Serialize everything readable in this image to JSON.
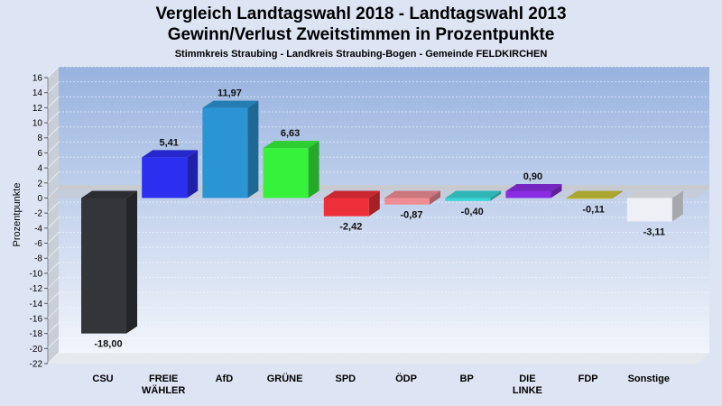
{
  "title": "Vergleich Landtagswahl 2018 - Landtagswahl 2013",
  "subtitle": "Gewinn/Verlust Zweitstimmen in Prozentpunkte",
  "subsubtitle": "Stimmkreis Straubing - Landkreis Straubing-Bogen - Gemeinde FELDKIRCHEN",
  "chart_data": {
    "type": "bar",
    "categories": [
      "CSU",
      "FREIE WÄHLER",
      "AfD",
      "GRÜNE",
      "SPD",
      "ÖDP",
      "BP",
      "DIE LINKE",
      "FDP",
      "Sonstige"
    ],
    "category_lines": [
      [
        "CSU"
      ],
      [
        "FREIE",
        "WÄHLER"
      ],
      [
        "AfD"
      ],
      [
        "GRÜNE"
      ],
      [
        "SPD"
      ],
      [
        "ÖDP"
      ],
      [
        "BP"
      ],
      [
        "DIE",
        "LINKE"
      ],
      [
        "FDP"
      ],
      [
        "Sonstige"
      ]
    ],
    "values": [
      -18.0,
      5.41,
      11.97,
      6.63,
      -2.42,
      -0.87,
      -0.4,
      0.9,
      -0.11,
      -3.11
    ],
    "value_labels": [
      "-18,00",
      "5,41",
      "11,97",
      "6,63",
      "-2,42",
      "-0,87",
      "-0,40",
      "0,90",
      "-0,11",
      "-3,11"
    ],
    "colors": [
      "#333539",
      "#2d2ff0",
      "#2b94d3",
      "#36f23a",
      "#ec2f38",
      "#f08c93",
      "#3ad6d6",
      "#8a2de3",
      "#c9c23a",
      "#eef0f5"
    ],
    "ylabel": "Prozentpunkte",
    "ylim": [
      -22,
      16
    ],
    "yticks": [
      16,
      14,
      12,
      10,
      8,
      6,
      4,
      2,
      0,
      -2,
      -4,
      -6,
      -8,
      -10,
      -12,
      -14,
      -16,
      -18,
      -20,
      -22
    ],
    "grid": true
  }
}
